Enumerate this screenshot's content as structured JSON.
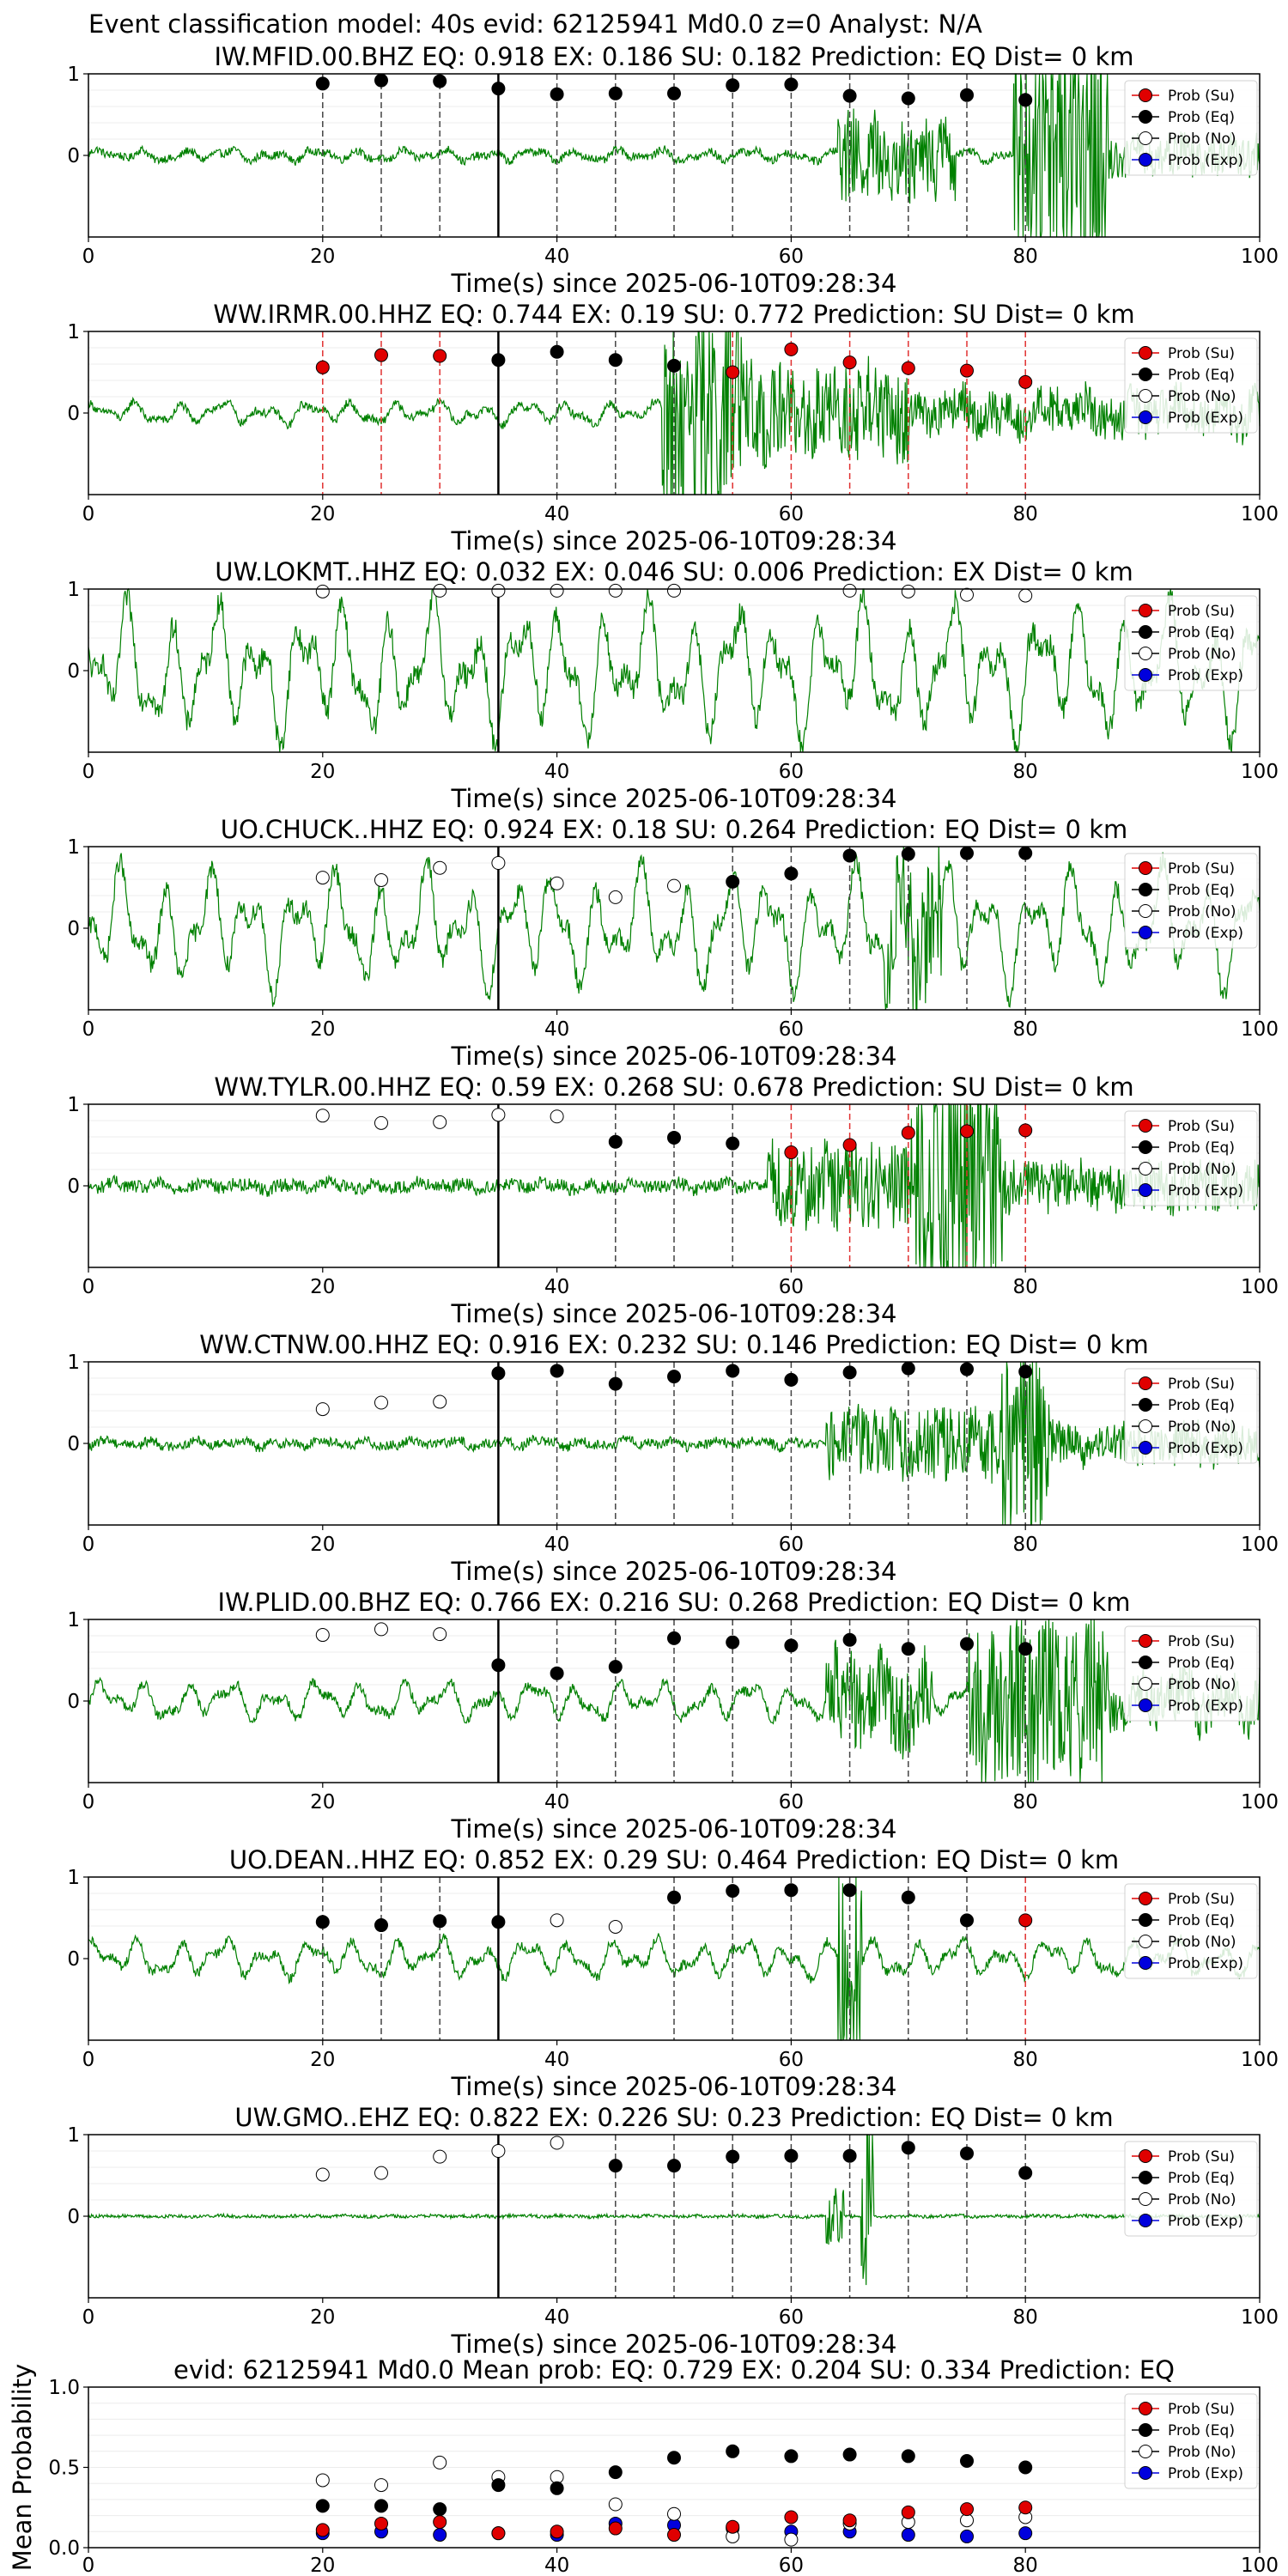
{
  "suptitle": "Event classification model: 40s evid: 62125941 Md0.0 z=0 Analyst: N/A",
  "legend_labels": [
    "Prob (Su)",
    "Prob (Eq)",
    "Prob (No)",
    "Prob (Exp)"
  ],
  "colors": {
    "su": "#e00000",
    "eq": "#000000",
    "no": "#ffffff",
    "exp": "#0000dd",
    "waveform": "#008000",
    "eq_line": "#444444",
    "su_line": "#e03030"
  },
  "chart_data": {
    "type": "scatter",
    "x_ticks": [
      "0",
      "20",
      "40",
      "60",
      "80",
      "100"
    ],
    "y_ticks": [
      "1",
      "0"
    ],
    "xlabel": "Time(s) since 2025-06-10T09:28:34",
    "xlim": [
      0,
      100
    ],
    "panels": [
      {
        "title": "IW.MFID.00.BHZ   EQ: 0.918  EX: 0.186  SU: 0.182   Prediction: EQ    Dist= 0 km",
        "vline": 35,
        "amp": 0.08,
        "noise": 0.05,
        "bursts": [
          [
            64,
            74,
            0.55
          ],
          [
            79,
            87,
            1.7
          ],
          [
            87,
            100,
            0.25
          ]
        ],
        "x": [
          20,
          25,
          30,
          35,
          40,
          45,
          50,
          55,
          60,
          65,
          70,
          75,
          80
        ],
        "probs": [
          0.88,
          0.92,
          0.91,
          0.82,
          0.75,
          0.76,
          0.76,
          0.86,
          0.87,
          0.73,
          0.7,
          0.74,
          0.68
        ],
        "kinds": [
          "eq",
          "eq",
          "eq",
          "eq",
          "eq",
          "eq",
          "eq",
          "eq",
          "eq",
          "eq",
          "eq",
          "eq",
          "eq"
        ]
      },
      {
        "title": "WW.IRMR.00.HHZ   EQ: 0.744  EX: 0.19  SU: 0.772   Prediction: SU    Dist= 0 km",
        "vline": 35,
        "amp": 0.15,
        "noise": 0.05,
        "bursts": [
          [
            49,
            56,
            1.4
          ],
          [
            56,
            70,
            0.55
          ],
          [
            70,
            100,
            0.25
          ]
        ],
        "x": [
          20,
          25,
          30,
          35,
          40,
          45,
          50,
          55,
          60,
          65,
          70,
          75,
          80
        ],
        "probs": [
          0.56,
          0.71,
          0.7,
          0.65,
          0.75,
          0.65,
          0.58,
          0.5,
          0.78,
          0.62,
          0.55,
          0.52,
          0.38
        ],
        "kinds": [
          "su",
          "su",
          "su",
          "eq",
          "eq",
          "eq",
          "eq",
          "su",
          "su",
          "su",
          "su",
          "su",
          "su"
        ]
      },
      {
        "title": "UW.LOKMT..HHZ   EQ: 0.032  EX: 0.046  SU: 0.006   Prediction: EX    Dist= 0 km",
        "vline": 35,
        "amp": 0.85,
        "noise": 0.15,
        "bursts": [],
        "x": [
          20,
          30,
          35,
          40,
          45,
          50,
          65,
          70,
          75,
          80
        ],
        "probs": [
          0.97,
          0.98,
          0.98,
          0.98,
          0.98,
          0.98,
          0.98,
          0.97,
          0.93,
          0.92
        ],
        "kinds": [
          "no",
          "no",
          "no",
          "no",
          "no",
          "no",
          "no",
          "no",
          "no",
          "no"
        ]
      },
      {
        "title": "UO.CHUCK..HHZ   EQ: 0.924  EX: 0.18  SU: 0.264   Prediction: EQ    Dist= 0 km",
        "vline": 35,
        "amp": 0.75,
        "noise": 0.12,
        "bursts": [
          [
            68,
            73,
            0.9
          ]
        ],
        "x": [
          20,
          25,
          30,
          35,
          40,
          45,
          50,
          55,
          60,
          65,
          70,
          75,
          80
        ],
        "probs": [
          0.62,
          0.59,
          0.74,
          0.8,
          0.55,
          0.38,
          0.52,
          0.57,
          0.67,
          0.89,
          0.91,
          0.92,
          0.92
        ],
        "kinds": [
          "no",
          "no",
          "no",
          "no",
          "no",
          "no",
          "no",
          "eq",
          "eq",
          "eq",
          "eq",
          "eq",
          "eq"
        ]
      },
      {
        "title": "WW.TYLR.00.HHZ   EQ: 0.59  EX: 0.268  SU: 0.678   Prediction: SU    Dist= 0 km",
        "vline": 35,
        "amp": 0.05,
        "noise": 0.08,
        "bursts": [
          [
            58,
            70,
            0.55
          ],
          [
            70,
            78,
            1.6
          ],
          [
            78,
            100,
            0.3
          ]
        ],
        "x": [
          20,
          25,
          30,
          35,
          40,
          45,
          50,
          55,
          60,
          65,
          70,
          75,
          80
        ],
        "probs": [
          0.86,
          0.77,
          0.78,
          0.87,
          0.85,
          0.54,
          0.59,
          0.52,
          0.41,
          0.5,
          0.65,
          0.67,
          0.68
        ],
        "kinds": [
          "no",
          "no",
          "no",
          "no",
          "no",
          "eq",
          "eq",
          "eq",
          "su",
          "su",
          "su",
          "su",
          "su"
        ]
      },
      {
        "title": "WW.CTNW.00.HHZ   EQ: 0.916  EX: 0.232  SU: 0.146   Prediction: EQ    Dist= 0 km",
        "vline": 35,
        "amp": 0.05,
        "noise": 0.06,
        "bursts": [
          [
            63,
            78,
            0.45
          ],
          [
            78,
            82,
            1.3
          ],
          [
            82,
            100,
            0.25
          ]
        ],
        "x": [
          20,
          25,
          30,
          35,
          40,
          45,
          50,
          55,
          60,
          65,
          70,
          75,
          80
        ],
        "probs": [
          0.42,
          0.5,
          0.51,
          0.86,
          0.89,
          0.73,
          0.82,
          0.89,
          0.78,
          0.87,
          0.92,
          0.91,
          0.88
        ],
        "kinds": [
          "no",
          "no",
          "no",
          "eq",
          "eq",
          "eq",
          "eq",
          "eq",
          "eq",
          "eq",
          "eq",
          "eq",
          "eq"
        ]
      },
      {
        "title": "IW.PLID.00.BHZ   EQ: 0.766  EX: 0.216  SU: 0.268   Prediction: EQ    Dist= 0 km",
        "vline": 35,
        "amp": 0.25,
        "noise": 0.06,
        "bursts": [
          [
            63,
            72,
            0.55
          ],
          [
            75,
            87,
            1.0
          ],
          [
            87,
            100,
            0.3
          ]
        ],
        "x": [
          20,
          25,
          30,
          35,
          40,
          45,
          50,
          55,
          60,
          65,
          70,
          75,
          80
        ],
        "probs": [
          0.81,
          0.88,
          0.82,
          0.44,
          0.34,
          0.42,
          0.77,
          0.72,
          0.68,
          0.75,
          0.64,
          0.7,
          0.64
        ],
        "kinds": [
          "no",
          "no",
          "no",
          "eq",
          "eq",
          "eq",
          "eq",
          "eq",
          "eq",
          "eq",
          "eq",
          "eq",
          "eq"
        ]
      },
      {
        "title": "UO.DEAN..HHZ   EQ: 0.852  EX: 0.29  SU: 0.464   Prediction: EQ    Dist= 0 km",
        "vline": 35,
        "amp": 0.25,
        "noise": 0.06,
        "bursts": [
          [
            64,
            66,
            1.7
          ]
        ],
        "x": [
          20,
          25,
          30,
          35,
          40,
          45,
          50,
          55,
          60,
          65,
          70,
          75,
          80
        ],
        "probs": [
          0.45,
          0.41,
          0.46,
          0.45,
          0.47,
          0.39,
          0.75,
          0.83,
          0.84,
          0.84,
          0.75,
          0.47,
          0.47
        ],
        "kinds": [
          "eq",
          "eq",
          "eq",
          "eq",
          "no",
          "no",
          "eq",
          "eq",
          "eq",
          "eq",
          "eq",
          "eq",
          "su"
        ]
      },
      {
        "title": "UW.GMO..EHZ   EQ: 0.822  EX: 0.226  SU: 0.23   Prediction: EQ    Dist= 0 km",
        "vline": 35,
        "amp": 0.01,
        "noise": 0.02,
        "bursts": [
          [
            63,
            64.5,
            0.35
          ],
          [
            66,
            67,
            1.4
          ]
        ],
        "x": [
          20,
          25,
          30,
          35,
          40,
          45,
          50,
          55,
          60,
          65,
          70,
          75,
          80
        ],
        "probs": [
          0.51,
          0.53,
          0.73,
          0.8,
          0.9,
          0.62,
          0.62,
          0.73,
          0.74,
          0.74,
          0.84,
          0.77,
          0.53
        ],
        "kinds": [
          "no",
          "no",
          "no",
          "no",
          "no",
          "eq",
          "eq",
          "eq",
          "eq",
          "eq",
          "eq",
          "eq",
          "eq"
        ]
      }
    ],
    "mean": {
      "title": "evid: 62125941  Md0.0    Mean prob:    EQ: 0.729  EX: 0.204  SU: 0.334   Prediction: EQ",
      "ylabel": "Mean Probability",
      "ylim": [
        0,
        1
      ],
      "y_ticks": [
        "0.0",
        "0.5",
        "1.0"
      ],
      "x": [
        20,
        25,
        30,
        35,
        40,
        45,
        50,
        55,
        60,
        65,
        70,
        75,
        80
      ],
      "eq": [
        0.26,
        0.26,
        0.24,
        0.39,
        0.37,
        0.47,
        0.56,
        0.6,
        0.57,
        0.58,
        0.57,
        0.54,
        0.5
      ],
      "no": [
        0.42,
        0.39,
        0.53,
        0.44,
        0.44,
        0.27,
        0.21,
        0.07,
        0.05,
        0.15,
        0.16,
        0.17,
        0.19
      ],
      "su": [
        0.11,
        0.15,
        0.16,
        0.09,
        0.1,
        0.12,
        0.08,
        0.13,
        0.19,
        0.17,
        0.22,
        0.24,
        0.25
      ],
      "exp": [
        0.09,
        0.1,
        0.08,
        0.09,
        0.08,
        0.15,
        0.14,
        0.12,
        0.1,
        0.1,
        0.08,
        0.07,
        0.09
      ]
    }
  }
}
